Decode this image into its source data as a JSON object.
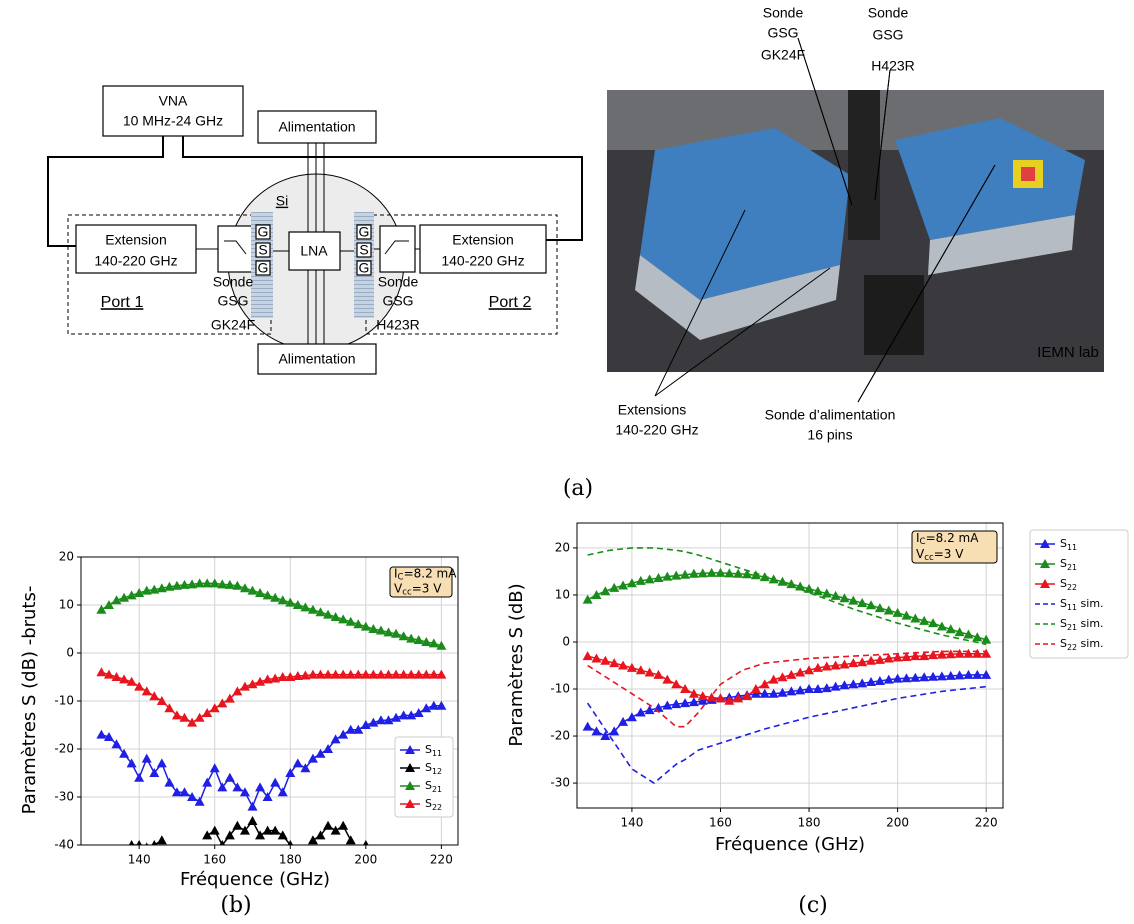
{
  "figure": {
    "diagram": {
      "vna": [
        "VNA",
        "10 MHz-24 GHz"
      ],
      "power_top": "Alimentation",
      "power_bottom": "Alimentation",
      "chip": "Si",
      "lna": "LNA",
      "left": {
        "extension": [
          "Extension",
          "140-220 GHz"
        ],
        "probe_pins": [
          "G",
          "S",
          "G"
        ],
        "probe": [
          "Sonde",
          "GSG"
        ],
        "probe_model": "GK24F",
        "port": "Port 1"
      },
      "right": {
        "extension": [
          "Extension",
          "140-220 GHz"
        ],
        "probe_pins": [
          "G",
          "S",
          "G"
        ],
        "probe": [
          "Sonde",
          "GSG"
        ],
        "probe_model": "H423R",
        "port": "Port 2"
      }
    },
    "photo": {
      "probe_left": [
        "Sonde",
        "GSG",
        "GK24F"
      ],
      "probe_right": [
        "Sonde",
        "GSG",
        "H423R"
      ],
      "credit": "IEMN lab",
      "extensions": [
        "Extensions",
        "140-220 GHz"
      ],
      "power_probe": [
        "Sonde d’alimentation",
        "16 pins"
      ]
    },
    "caption": "(a)"
  },
  "chart_data": [
    {
      "type": "line",
      "caption": "(b)",
      "y_label": "Paramètres S (dB) -bruts-",
      "x_label": "Fréquence (GHz)",
      "annotation": [
        "IC=8.2 mA",
        "Vcc=3 V"
      ],
      "xlim": [
        124.6,
        224.4
      ],
      "ylim": [
        -40,
        20
      ],
      "xticks": [
        140,
        160,
        180,
        200,
        220
      ],
      "yticks": [
        -40,
        -30,
        -20,
        -10,
        0,
        10,
        20
      ],
      "grid": true,
      "x": [
        130,
        132,
        134,
        136,
        138,
        140,
        142,
        144,
        146,
        148,
        150,
        152,
        154,
        156,
        158,
        160,
        162,
        164,
        166,
        168,
        170,
        172,
        174,
        176,
        178,
        180,
        182,
        184,
        186,
        188,
        190,
        192,
        194,
        196,
        198,
        200,
        202,
        204,
        206,
        208,
        210,
        212,
        214,
        216,
        218,
        220
      ],
      "series": [
        {
          "name": "S11",
          "color": "#1f1fe6",
          "values": [
            -17,
            -17.5,
            -19,
            -21,
            -23,
            -26,
            -22,
            -25,
            -23,
            -27,
            -29,
            -29,
            -30,
            -31,
            -27,
            -24,
            -28,
            -26,
            -28,
            -29,
            -32,
            -28,
            -30,
            -27,
            -29,
            -25,
            -23,
            -24,
            -22,
            -21,
            -20,
            -18,
            -17,
            -16,
            -16,
            -15,
            -14.5,
            -14,
            -14,
            -13.5,
            -13,
            -13,
            -12.5,
            -11.5,
            -11,
            -11
          ]
        },
        {
          "name": "S12",
          "color": "#000000",
          "values": [
            null,
            null,
            null,
            null,
            -40,
            -40,
            -40.5,
            -40,
            -39,
            null,
            null,
            null,
            null,
            null,
            -38,
            -37,
            -40,
            -38,
            -36,
            -37,
            -35,
            -38,
            -37,
            -37,
            -38,
            -40,
            null,
            null,
            -39,
            -38,
            -36,
            -37,
            -36,
            -39,
            null,
            -40,
            null,
            null,
            null,
            null,
            null,
            null,
            null,
            null,
            null,
            null
          ]
        },
        {
          "name": "S21",
          "color": "#1a8c1a",
          "values": [
            9,
            10,
            11,
            11.5,
            12,
            12.5,
            13,
            13.2,
            13.5,
            13.8,
            14,
            14.2,
            14.3,
            14.5,
            14.5,
            14.5,
            14.3,
            14.2,
            14,
            13.5,
            13,
            12.5,
            12,
            11.5,
            11,
            10.5,
            10,
            9.5,
            9,
            8.5,
            8,
            7.5,
            7,
            6.5,
            6,
            5.5,
            5,
            4.7,
            4.3,
            4,
            3.5,
            3,
            2.7,
            2.3,
            2,
            1.5
          ]
        },
        {
          "name": "S22",
          "color": "#e8141e",
          "values": [
            -4,
            -4.5,
            -5,
            -5.5,
            -6,
            -7,
            -8,
            -9,
            -10,
            -11.5,
            -13,
            -13.5,
            -14.5,
            -13.5,
            -12.5,
            -11.5,
            -10.5,
            -9.5,
            -8,
            -7,
            -6.5,
            -6,
            -5.5,
            -5.3,
            -5,
            -5,
            -4.8,
            -4.7,
            -4.5,
            -4.5,
            -4.5,
            -4.5,
            -4.5,
            -4.5,
            -4.5,
            -4.5,
            -4.5,
            -4.5,
            -4.5,
            -4.5,
            -4.5,
            -4.5,
            -4.5,
            -4.5,
            -4.5,
            -4.5
          ]
        }
      ]
    },
    {
      "type": "line",
      "caption": "(c)",
      "y_label": "Paramètres S (dB)",
      "x_label": "Fréquence (GHz)",
      "annotation": [
        "IC=8.2 mA",
        "Vcc=3 V"
      ],
      "xlim": [
        127.6,
        223.8
      ],
      "ylim": [
        -35.3,
        25.3
      ],
      "xticks": [
        140,
        160,
        180,
        200,
        220
      ],
      "yticks": [
        -30,
        -20,
        -10,
        0,
        10,
        20
      ],
      "grid": true,
      "x": [
        130,
        132,
        134,
        136,
        138,
        140,
        142,
        144,
        146,
        148,
        150,
        152,
        154,
        156,
        158,
        160,
        162,
        164,
        166,
        168,
        170,
        172,
        174,
        176,
        178,
        180,
        182,
        184,
        186,
        188,
        190,
        192,
        194,
        196,
        198,
        200,
        202,
        204,
        206,
        208,
        210,
        212,
        214,
        216,
        218,
        220
      ],
      "series": [
        {
          "name": "S11",
          "color": "#1f1fe6",
          "values": [
            -18,
            -19,
            -20,
            -19,
            -17,
            -16,
            -15,
            -14.5,
            -14,
            -13.5,
            -13.2,
            -13,
            -12.8,
            -12.5,
            -12.3,
            -12,
            -11.8,
            -11.5,
            -11.3,
            -11,
            -11,
            -11,
            -10.8,
            -10.5,
            -10.3,
            -10,
            -10,
            -9.8,
            -9.5,
            -9.2,
            -9,
            -8.8,
            -8.5,
            -8.3,
            -8,
            -7.8,
            -7.7,
            -7.6,
            -7.5,
            -7.4,
            -7.3,
            -7.2,
            -7.1,
            -7,
            -7,
            -7
          ]
        },
        {
          "name": "S21",
          "color": "#1a8c1a",
          "values": [
            9,
            10,
            10.8,
            11.5,
            12,
            12.5,
            13,
            13.3,
            13.6,
            13.9,
            14.1,
            14.3,
            14.5,
            14.6,
            14.7,
            14.7,
            14.6,
            14.5,
            14.4,
            14.2,
            13.8,
            13.3,
            12.8,
            12.3,
            11.8,
            11.3,
            10.8,
            10.3,
            9.8,
            9.3,
            8.8,
            8.3,
            7.8,
            7.2,
            6.7,
            6.2,
            5.6,
            5,
            4.5,
            4,
            3.3,
            2.7,
            2.1,
            1.6,
            1,
            0.5
          ]
        },
        {
          "name": "S22",
          "color": "#e8141e",
          "values": [
            -3,
            -3.5,
            -4,
            -4.5,
            -5,
            -5.5,
            -6,
            -6.5,
            -7,
            -8,
            -9,
            -10,
            -11,
            -11.5,
            -11.8,
            -12,
            -12.5,
            -12,
            -11.5,
            -10,
            -9,
            -8,
            -7.5,
            -7,
            -6.5,
            -6,
            -5.5,
            -5.2,
            -5,
            -4.8,
            -4.5,
            -4.3,
            -4,
            -3.8,
            -3.5,
            -3.3,
            -3.2,
            -3,
            -3,
            -2.8,
            -2.7,
            -2.6,
            -2.5,
            -2.5,
            -2.5,
            -2.5
          ]
        },
        {
          "name": "S11 sim.",
          "color": "#1f1fe6",
          "dashed": true,
          "x": [
            130,
            135,
            140,
            145,
            150,
            152,
            155,
            160,
            165,
            170,
            180,
            190,
            200,
            210,
            220
          ],
          "values": [
            -13,
            -20,
            -27,
            -30,
            -26,
            -25,
            -23,
            -21.5,
            -20,
            -18.5,
            -16,
            -14,
            -12,
            -10.5,
            -9.5
          ]
        },
        {
          "name": "S21 sim.",
          "color": "#1a8c1a",
          "dashed": true,
          "x": [
            130,
            135,
            140,
            145,
            150,
            152,
            155,
            160,
            165,
            170,
            180,
            190,
            200,
            210,
            220
          ],
          "values": [
            18.5,
            19.5,
            20,
            20,
            19.5,
            19.2,
            18.5,
            17,
            15.5,
            14,
            10.5,
            7,
            4,
            1.5,
            -0.5
          ]
        },
        {
          "name": "S22 sim.",
          "color": "#e8141e",
          "dashed": true,
          "x": [
            130,
            135,
            140,
            145,
            150,
            152,
            155,
            160,
            165,
            170,
            180,
            190,
            200,
            210,
            220
          ],
          "values": [
            -5,
            -8,
            -11,
            -14,
            -18,
            -18,
            -15,
            -9,
            -6,
            -4.5,
            -3.5,
            -3,
            -2.5,
            -2,
            -2
          ]
        }
      ]
    }
  ]
}
